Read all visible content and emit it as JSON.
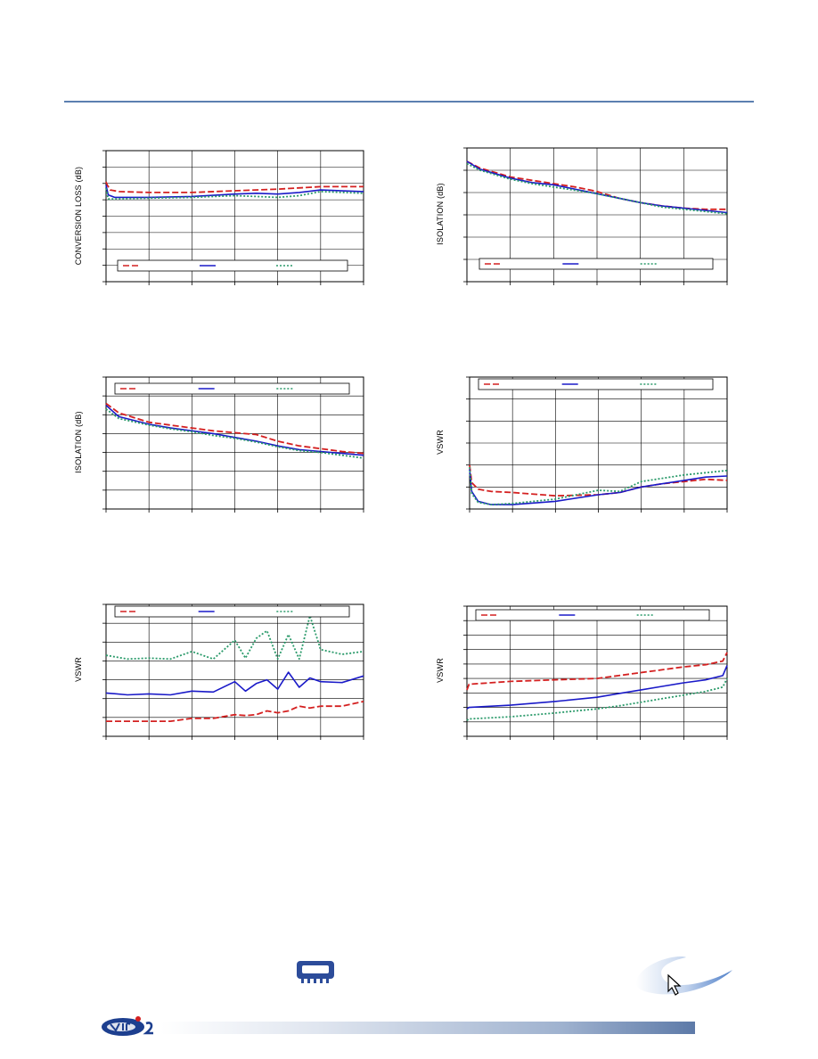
{
  "colors": {
    "red": "#d42020",
    "blue": "#1a1ac8",
    "green": "#2a9a6a",
    "rule": "#5b7fb0"
  },
  "charts": [
    {
      "id": "conversion-loss",
      "ylabel": "CONVERSION LOSS (dB)",
      "chart_data": {
        "type": "line",
        "x_divisions": 6,
        "y_divisions": 8,
        "xlim": [
          0,
          6
        ],
        "ylim": [
          0,
          8
        ],
        "series": [
          {
            "color": "red",
            "style": "dashed",
            "x": [
              0,
              0.03,
              0.1,
              0.3,
              1,
              2,
              3,
              4,
              5,
              6
            ],
            "values": [
              6.1,
              5.9,
              5.6,
              5.5,
              5.45,
              5.45,
              5.55,
              5.65,
              5.8,
              5.8
            ]
          },
          {
            "color": "blue",
            "style": "solid",
            "x": [
              0,
              0.05,
              0.2,
              1,
              2,
              3,
              3.5,
              4,
              4.5,
              5,
              6
            ],
            "values": [
              5.9,
              5.3,
              5.15,
              5.15,
              5.2,
              5.35,
              5.4,
              5.35,
              5.45,
              5.6,
              5.5
            ]
          },
          {
            "color": "green",
            "style": "dotted",
            "x": [
              0,
              0.05,
              0.2,
              1,
              2,
              3,
              3.5,
              4,
              4.5,
              5,
              6
            ],
            "values": [
              5.7,
              5.05,
              5.05,
              5.1,
              5.15,
              5.25,
              5.2,
              5.15,
              5.25,
              5.5,
              5.4
            ]
          }
        ]
      }
    },
    {
      "id": "isolation-top-right",
      "ylabel": "ISOLATION (dB)",
      "chart_data": {
        "type": "line",
        "x_divisions": 6,
        "y_divisions": 6,
        "xlim": [
          0,
          6
        ],
        "ylim": [
          0,
          6
        ],
        "series": [
          {
            "color": "red",
            "style": "dashed",
            "x": [
              0,
              0.3,
              1,
              1.5,
              2,
              2.5,
              3,
              3.5,
              4,
              4.5,
              5,
              5.5,
              6
            ],
            "values": [
              5.4,
              5.1,
              4.7,
              4.55,
              4.4,
              4.25,
              4.05,
              3.75,
              3.55,
              3.4,
              3.3,
              3.25,
              3.25
            ]
          },
          {
            "color": "blue",
            "style": "solid",
            "x": [
              0,
              0.3,
              1,
              1.5,
              2,
              2.5,
              3,
              3.5,
              4,
              4.5,
              5,
              5.5,
              6
            ],
            "values": [
              5.4,
              5.05,
              4.65,
              4.45,
              4.35,
              4.15,
              3.95,
              3.75,
              3.55,
              3.4,
              3.3,
              3.2,
              3.1
            ]
          },
          {
            "color": "green",
            "style": "dotted",
            "x": [
              0,
              0.3,
              1,
              1.5,
              2,
              2.5,
              3,
              3.5,
              4,
              4.5,
              5,
              5.5,
              6
            ],
            "values": [
              5.3,
              5.0,
              4.6,
              4.4,
              4.25,
              4.1,
              3.95,
              3.75,
              3.55,
              3.35,
              3.25,
              3.15,
              3.05
            ]
          }
        ]
      }
    },
    {
      "id": "isolation-middle-left",
      "ylabel": "ISOLATION (dB)",
      "chart_data": {
        "type": "line",
        "x_divisions": 6,
        "y_divisions": 7,
        "xlim": [
          0,
          6
        ],
        "ylim": [
          0,
          7
        ],
        "series": [
          {
            "color": "red",
            "style": "dashed",
            "x": [
              0,
              0.3,
              1,
              1.5,
              2,
              2.5,
              3,
              3.5,
              4,
              4.5,
              5,
              5.5,
              6
            ],
            "values": [
              5.6,
              5.1,
              4.6,
              4.45,
              4.3,
              4.15,
              4.05,
              3.95,
              3.6,
              3.35,
              3.2,
              3.05,
              2.95
            ]
          },
          {
            "color": "blue",
            "style": "solid",
            "x": [
              0,
              0.3,
              1,
              1.5,
              2,
              2.5,
              3,
              3.5,
              4,
              4.5,
              5,
              5.5,
              6
            ],
            "values": [
              5.5,
              4.9,
              4.5,
              4.3,
              4.15,
              4.0,
              3.8,
              3.6,
              3.35,
              3.15,
              3.05,
              2.95,
              2.85
            ]
          },
          {
            "color": "green",
            "style": "dotted",
            "x": [
              0,
              0.3,
              1,
              1.5,
              2,
              2.5,
              3,
              3.5,
              4,
              4.5,
              5,
              5.5,
              6
            ],
            "values": [
              5.3,
              4.8,
              4.45,
              4.25,
              4.1,
              3.9,
              3.75,
              3.55,
              3.3,
              3.1,
              3.0,
              2.85,
              2.7
            ]
          }
        ]
      }
    },
    {
      "id": "vswr-middle-right",
      "ylabel": "VSWR",
      "chart_data": {
        "type": "line",
        "x_divisions": 6,
        "y_divisions": 6,
        "xlim": [
          0,
          6
        ],
        "ylim": [
          0,
          6
        ],
        "series": [
          {
            "color": "red",
            "style": "dashed",
            "x": [
              0,
              0.05,
              0.2,
              0.5,
              1,
              2,
              3,
              3.5,
              4,
              4.5,
              5,
              5.5,
              6
            ],
            "values": [
              2.0,
              1.2,
              0.9,
              0.8,
              0.75,
              0.6,
              0.65,
              0.75,
              1.0,
              1.15,
              1.25,
              1.35,
              1.3
            ]
          },
          {
            "color": "blue",
            "style": "solid",
            "x": [
              0,
              0.05,
              0.2,
              0.5,
              1,
              2,
              3,
              3.5,
              4,
              4.5,
              5,
              5.5,
              6
            ],
            "values": [
              1.8,
              0.8,
              0.35,
              0.2,
              0.2,
              0.35,
              0.65,
              0.75,
              1.0,
              1.15,
              1.3,
              1.45,
              1.5
            ]
          },
          {
            "color": "green",
            "style": "dotted",
            "x": [
              0,
              0.05,
              0.2,
              0.5,
              1,
              2,
              3,
              3.5,
              4,
              4.5,
              5,
              5.5,
              6
            ],
            "values": [
              1.9,
              0.7,
              0.3,
              0.2,
              0.25,
              0.45,
              0.85,
              0.8,
              1.25,
              1.4,
              1.55,
              1.65,
              1.75
            ]
          }
        ]
      }
    },
    {
      "id": "vswr-bottom-left",
      "ylabel": "VSWR",
      "chart_data": {
        "type": "line",
        "x_divisions": 6,
        "y_divisions": 7,
        "xlim": [
          0,
          6
        ],
        "ylim": [
          0,
          7
        ],
        "series": [
          {
            "color": "red",
            "style": "dashed",
            "x": [
              0,
              0.5,
              1,
              1.5,
              2,
              2.5,
              3,
              3.25,
              3.5,
              3.75,
              4,
              4.25,
              4.5,
              4.75,
              5,
              5.5,
              6
            ],
            "values": [
              0.8,
              0.8,
              0.8,
              0.8,
              0.95,
              0.95,
              1.15,
              1.1,
              1.15,
              1.35,
              1.25,
              1.35,
              1.6,
              1.5,
              1.6,
              1.6,
              1.85
            ]
          },
          {
            "color": "blue",
            "style": "solid",
            "x": [
              0,
              0.5,
              1,
              1.5,
              2,
              2.5,
              3,
              3.25,
              3.5,
              3.75,
              4,
              4.25,
              4.5,
              4.75,
              5,
              5.5,
              6
            ],
            "values": [
              2.3,
              2.2,
              2.25,
              2.2,
              2.4,
              2.35,
              2.9,
              2.4,
              2.8,
              3.0,
              2.5,
              3.4,
              2.6,
              3.1,
              2.9,
              2.85,
              3.2
            ]
          },
          {
            "color": "green",
            "style": "dotted",
            "x": [
              0,
              0.5,
              1,
              1.5,
              2,
              2.5,
              3,
              3.25,
              3.5,
              3.75,
              4,
              4.25,
              4.5,
              4.75,
              5,
              5.5,
              6
            ],
            "values": [
              4.3,
              4.1,
              4.15,
              4.1,
              4.5,
              4.1,
              5.1,
              4.15,
              5.2,
              5.6,
              4.1,
              5.4,
              4.1,
              6.4,
              4.6,
              4.35,
              4.5
            ]
          }
        ]
      }
    },
    {
      "id": "vswr-bottom-right",
      "ylabel": "VSWR",
      "chart_data": {
        "type": "line",
        "x_divisions": 6,
        "y_divisions": 9,
        "xlim": [
          0,
          6
        ],
        "ylim": [
          0,
          9
        ],
        "series": [
          {
            "color": "red",
            "style": "dashed",
            "x": [
              0,
              0.05,
              1,
              2,
              3,
              3.5,
              4,
              4.5,
              5,
              5.5,
              5.9,
              6
            ],
            "values": [
              3.2,
              3.6,
              3.8,
              3.9,
              4.0,
              4.2,
              4.4,
              4.6,
              4.8,
              4.95,
              5.2,
              5.8
            ]
          },
          {
            "color": "blue",
            "style": "solid",
            "x": [
              0,
              0.05,
              1,
              2,
              3,
              3.5,
              4,
              4.5,
              5,
              5.5,
              5.9,
              6
            ],
            "values": [
              1.9,
              2.0,
              2.15,
              2.4,
              2.7,
              2.95,
              3.2,
              3.45,
              3.7,
              3.9,
              4.2,
              4.9
            ]
          },
          {
            "color": "green",
            "style": "dotted",
            "x": [
              0,
              0.05,
              1,
              2,
              3,
              3.5,
              4,
              4.5,
              5,
              5.5,
              5.9,
              6
            ],
            "values": [
              1.1,
              1.2,
              1.35,
              1.6,
              1.9,
              2.1,
              2.35,
              2.6,
              2.85,
              3.1,
              3.4,
              4.0
            ]
          }
        ]
      }
    }
  ],
  "icons": {
    "chip": "chip-icon",
    "swoosh": "cursor-swoosh-icon",
    "logo": "brand-logo-icon"
  }
}
